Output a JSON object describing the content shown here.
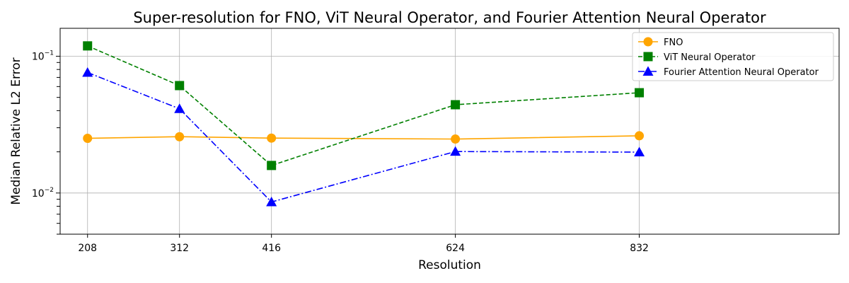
{
  "chart_data": {
    "type": "line",
    "title": "Super-resolution for FNO, ViT Neural Operator, and Fourier Attention Neural Operator",
    "xlabel": "Resolution",
    "ylabel": "Median Relative L2 Error",
    "x": [
      208,
      312,
      416,
      624,
      832
    ],
    "x_ticks": [
      "208",
      "312",
      "416",
      "624",
      "832"
    ],
    "y_scale": "log",
    "ylim": [
      0.005,
      0.16
    ],
    "xlim": [
      177,
      1058
    ],
    "y_major_ticks": [
      {
        "value": 0.01,
        "base": "10",
        "exp": "−2"
      },
      {
        "value": 0.1,
        "base": "10",
        "exp": "−1"
      }
    ],
    "grid": true,
    "legend_position": "top-right",
    "series": [
      {
        "name": "FNO",
        "values": [
          0.0251,
          0.0258,
          0.0252,
          0.0248,
          0.0262
        ],
        "color": "#ffa500",
        "marker": "circle",
        "linestyle": "solid"
      },
      {
        "name": "ViT Neural Operator",
        "values": [
          0.119,
          0.061,
          0.0159,
          0.0442,
          0.0541
        ],
        "color": "#008000",
        "marker": "square",
        "linestyle": "dashed"
      },
      {
        "name": "Fourier Attention Neural Operator",
        "values": [
          0.076,
          0.0413,
          0.0086,
          0.0201,
          0.0199
        ],
        "color": "#0000ff",
        "marker": "triangle",
        "linestyle": "dashdot"
      }
    ]
  }
}
